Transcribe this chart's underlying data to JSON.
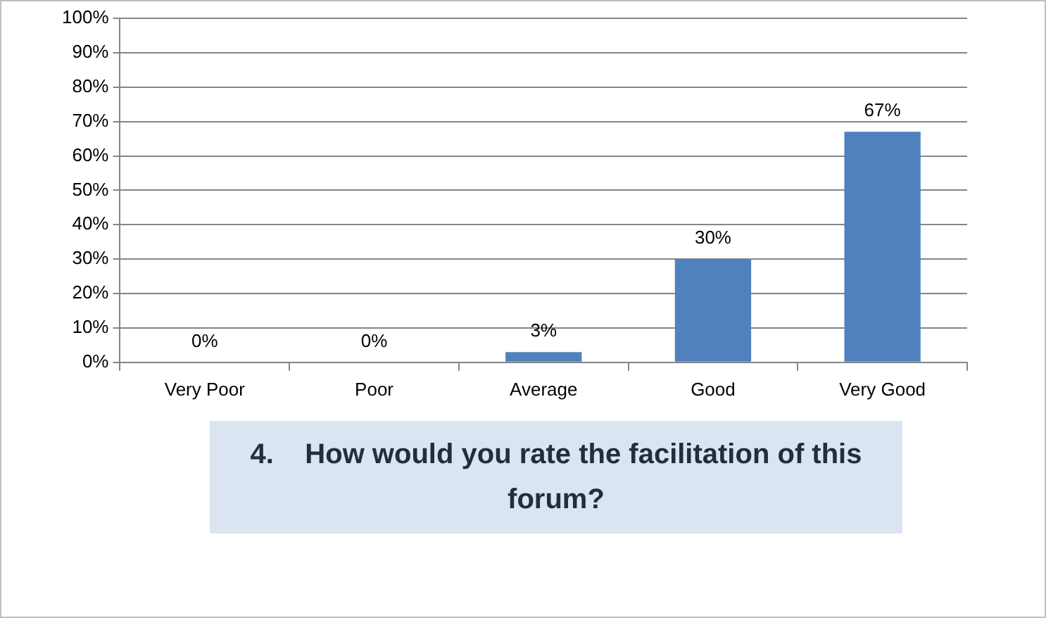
{
  "chart_data": {
    "type": "bar",
    "title": "4.    How would you rate the facilitation of this forum?",
    "categories": [
      "Very Poor",
      "Poor",
      "Average",
      "Good",
      "Very Good"
    ],
    "values": [
      0,
      0,
      3,
      30,
      67
    ],
    "color": "#4f81bd",
    "value_labels": [
      "0%",
      "0%",
      "3%",
      "30%",
      "67%"
    ],
    "ylim": [
      0,
      100
    ],
    "yticks": [
      {
        "value": 0,
        "label": "0%"
      },
      {
        "value": 10,
        "label": "10%"
      },
      {
        "value": 20,
        "label": "20%"
      },
      {
        "value": 30,
        "label": "30%"
      },
      {
        "value": 40,
        "label": "40%"
      },
      {
        "value": 50,
        "label": "50%"
      },
      {
        "value": 60,
        "label": "60%"
      },
      {
        "value": 70,
        "label": "70%"
      },
      {
        "value": 80,
        "label": "80%"
      },
      {
        "value": 90,
        "label": "90%"
      },
      {
        "value": 100,
        "label": "100%"
      }
    ],
    "grid": "y",
    "legend": false
  }
}
